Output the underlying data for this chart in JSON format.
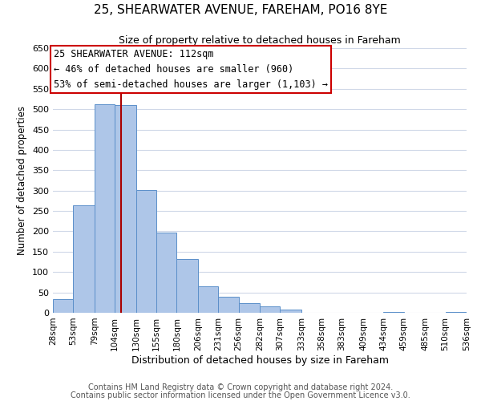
{
  "title": "25, SHEARWATER AVENUE, FAREHAM, PO16 8YE",
  "subtitle": "Size of property relative to detached houses in Fareham",
  "xlabel": "Distribution of detached houses by size in Fareham",
  "ylabel": "Number of detached properties",
  "footer_line1": "Contains HM Land Registry data © Crown copyright and database right 2024.",
  "footer_line2": "Contains public sector information licensed under the Open Government Licence v3.0.",
  "annotation_title": "25 SHEARWATER AVENUE: 112sqm",
  "annotation_line1": "← 46% of detached houses are smaller (960)",
  "annotation_line2": "53% of semi-detached houses are larger (1,103) →",
  "bar_edges": [
    28,
    53,
    79,
    104,
    130,
    155,
    180,
    206,
    231,
    256,
    282,
    307,
    333,
    358,
    383,
    409,
    434,
    459,
    485,
    510,
    536
  ],
  "bar_heights": [
    33,
    263,
    512,
    510,
    302,
    197,
    131,
    65,
    40,
    24,
    15,
    7,
    0,
    0,
    0,
    0,
    2,
    0,
    0,
    2
  ],
  "bar_color": "#aec6e8",
  "bar_edge_color": "#5b8fc9",
  "vline_x": 112,
  "vline_color": "#aa0000",
  "annotation_box_color": "#cc0000",
  "ylim": [
    0,
    650
  ],
  "yticks": [
    0,
    50,
    100,
    150,
    200,
    250,
    300,
    350,
    400,
    450,
    500,
    550,
    600,
    650
  ],
  "background_color": "#ffffff",
  "grid_color": "#d0d8e8",
  "title_fontsize": 11,
  "subtitle_fontsize": 9,
  "ylabel_fontsize": 8.5,
  "xlabel_fontsize": 9,
  "ytick_fontsize": 8,
  "xtick_fontsize": 7.5,
  "annotation_fontsize": 8.5,
  "footer_fontsize": 7
}
